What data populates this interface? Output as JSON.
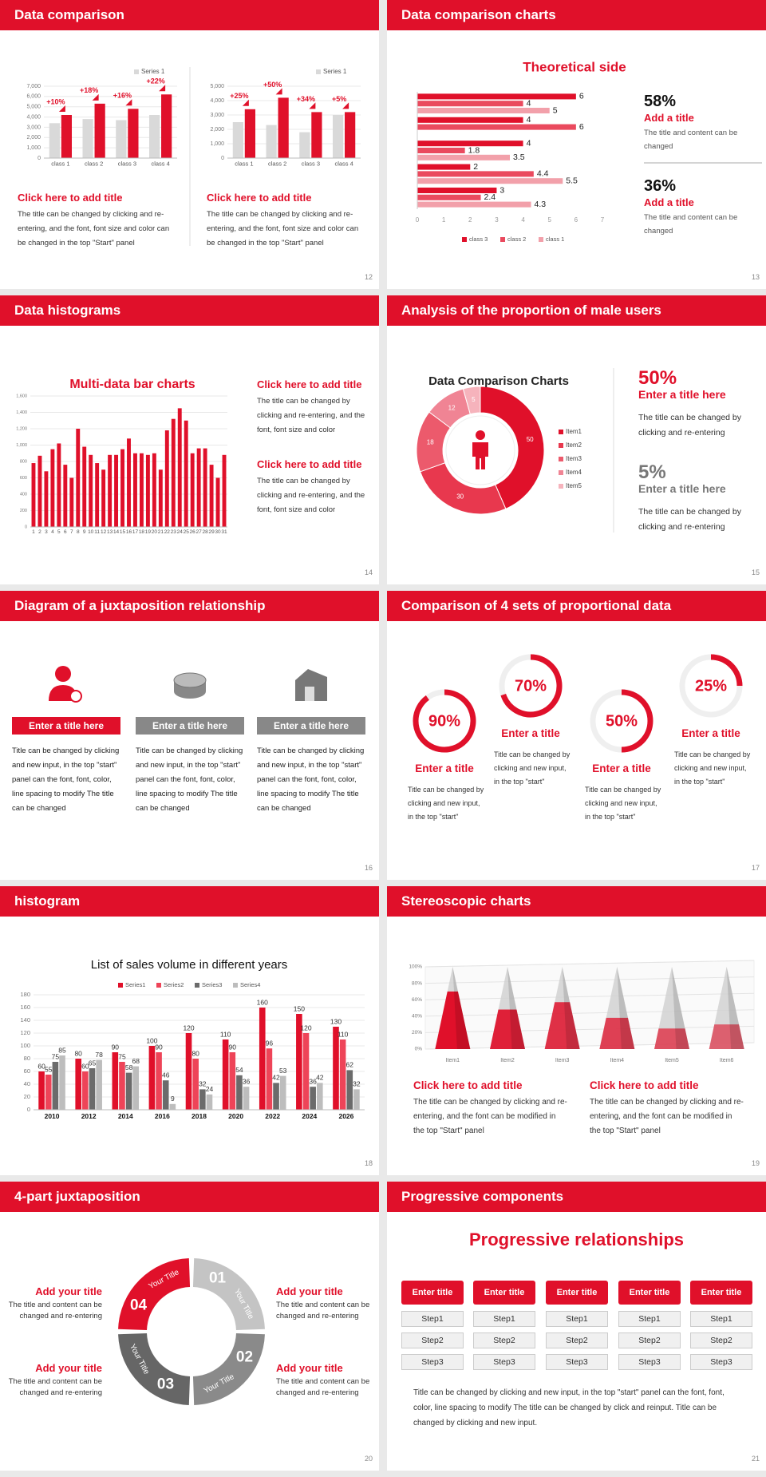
{
  "slides": [
    {
      "title": "Data comparison",
      "number": 12,
      "charts": [
        {
          "type": "bar",
          "categories": [
            "class 1",
            "class 2",
            "class 3",
            "class 4"
          ],
          "series": [
            {
              "name": "Series 1",
              "color": "#d9d9d9",
              "values": [
                3400,
                3800,
                3700,
                4200
              ]
            },
            {
              "color": "#e0102a",
              "values": [
                4200,
                5300,
                4800,
                6200
              ]
            }
          ],
          "annotations": [
            "+10%",
            "+18%",
            "+16%",
            "+22%"
          ],
          "ylim": [
            0,
            7000
          ],
          "yticks": [
            0,
            {
              "value": 1000,
              "label": "1,000"
            },
            {
              "value": 2000,
              "label": "2,000"
            },
            {
              "value": 3000,
              "label": "3,000"
            },
            {
              "value": 4000,
              "label": "4,000"
            },
            {
              "value": 5000,
              "label": "5,000"
            },
            {
              "value": 6000,
              "label": "6,000"
            },
            {
              "value": 7000,
              "label": "7,000"
            }
          ],
          "grid": true
        },
        {
          "type": "bar",
          "categories": [
            "class 1",
            "class 2",
            "class 3",
            "class 4"
          ],
          "series": [
            {
              "name": "Series 1",
              "color": "#d9d9d9",
              "values": [
                2500,
                2300,
                1800,
                3000
              ]
            },
            {
              "color": "#e0102a",
              "values": [
                3400,
                4200,
                3200,
                3200
              ]
            }
          ],
          "annotations": [
            "+25%",
            "+50%",
            "+34%",
            "+5%"
          ],
          "ylim": [
            0,
            5000
          ],
          "yticks": [
            0,
            {
              "value": 1000,
              "label": "1,000"
            },
            {
              "value": 2000,
              "label": "2,000"
            },
            {
              "value": 3000,
              "label": "3,000"
            },
            {
              "value": 4000,
              "label": "4,000"
            },
            {
              "value": 5000,
              "label": "5,000"
            }
          ],
          "grid": true
        }
      ],
      "items": [
        {
          "heading": "Click here to add title",
          "text": "The title can be changed by clicking and re-entering, and the font, font size and color can be changed in the top \"Start\" panel"
        },
        {
          "heading": "Click here to add title",
          "text": "The title can be changed by clicking and re-entering, and the font, font size and color can be changed in the top \"Start\" panel"
        }
      ]
    },
    {
      "title": "Data comparison charts",
      "number": 13,
      "chart": {
        "type": "barh",
        "title": "Theoretical side",
        "categories": [
          null,
          null,
          null,
          null,
          null
        ],
        "series": [
          {
            "name": "class 3",
            "color": "#e0102a",
            "values": [
              6,
              4,
              4,
              2,
              3
            ]
          },
          {
            "name": "class 2",
            "color": "#ea4a5e",
            "values": [
              4,
              6,
              1.8,
              4.4,
              2.4
            ]
          },
          {
            "name": "class 1",
            "color": "#f2a0aa",
            "values": [
              5,
              null,
              3.5,
              5.5,
              4.3
            ]
          }
        ],
        "xlim": [
          0,
          7
        ],
        "xticks": [
          0,
          1,
          2,
          3,
          4,
          5,
          6,
          7
        ]
      },
      "stats": [
        {
          "value": "58%",
          "heading": "Add a title",
          "text": "The title and content can be changed"
        },
        {
          "value": "36%",
          "heading": "Add a title",
          "text": "The title and content can be changed"
        }
      ]
    },
    {
      "title": "Data histograms",
      "number": 14,
      "chart": {
        "type": "bar",
        "title": "Multi-data bar charts",
        "categories": [
          "1",
          "2",
          "3",
          "4",
          "5",
          "6",
          "7",
          "8",
          "9",
          "10",
          "11",
          "12",
          "13",
          "14",
          "15",
          "16",
          "17",
          "18",
          "19",
          "20",
          "21",
          "22",
          "23",
          "24",
          "25",
          "26",
          "27",
          "28",
          "29",
          "30",
          "31"
        ],
        "series": [
          {
            "color": "#e0102a",
            "values": [
              780,
              870,
              680,
              950,
              1020,
              760,
              600,
              1200,
              980,
              880,
              780,
              700,
              880,
              880,
              950,
              1080,
              900,
              900,
              880,
              900,
              700,
              1180,
              1320,
              1450,
              1300,
              900,
              960,
              960,
              760,
              600,
              880
            ]
          }
        ],
        "ylim": [
          0,
          1600
        ],
        "yticks": [
          0,
          200,
          400,
          600,
          800,
          {
            "value": 1000,
            "label": "1,000"
          },
          {
            "value": 1200,
            "label": "1,200"
          },
          {
            "value": 1400,
            "label": "1,400"
          },
          {
            "value": 1600,
            "label": "1,600"
          }
        ],
        "grid": true
      },
      "items": [
        {
          "heading": "Click here to add title",
          "text": "The title can be changed by clicking and re-entering, and the font, font size and color"
        },
        {
          "heading": "Click here to add title",
          "text": "The title can be changed by clicking and re-entering, and the font, font size and color"
        }
      ]
    },
    {
      "title": "Analysis of the proportion of male users",
      "number": 15,
      "chart": {
        "type": "donut",
        "title": "Data Comparison Charts",
        "categories": [
          "Item1",
          "Item2",
          "Item3",
          "Item4",
          "Item5"
        ],
        "values": [
          50,
          30,
          18,
          12,
          5
        ],
        "colors": [
          "#e0102a",
          "#e8384e",
          "#ec5a6c",
          "#f08494",
          "#f6b3bc"
        ]
      },
      "stats": [
        {
          "value": "50%",
          "heading": "Enter a title here",
          "text": "The title can be changed by clicking and re-entering"
        },
        {
          "value": "5%",
          "heading": "Enter a title here",
          "text": "The title can be changed by clicking and re-entering"
        }
      ]
    },
    {
      "title": "Diagram of a juxtaposition relationship",
      "number": 16,
      "items": [
        {
          "heading": "Enter a title here",
          "text": "Title can be changed by clicking and new input, in the top \"start\" panel can the font, font, color, line spacing to modify The title can be changed"
        },
        {
          "heading": "Enter a title here",
          "text": "Title can be changed by clicking and new input, in the top \"start\" panel can the font, font, color, line spacing to modify The title can be changed"
        },
        {
          "heading": "Enter a title here",
          "text": "Title can be changed by clicking and new input, in the top \"start\" panel can the font, font, color, line spacing to modify The title can be changed"
        }
      ]
    },
    {
      "title": "Comparison of 4 sets of proportional data",
      "number": 17,
      "chart": {
        "type": "ring",
        "values": [
          90,
          70,
          50,
          25
        ],
        "value_labels": [
          "90%",
          "70%",
          "50%",
          "25%"
        ],
        "ylim": [
          0,
          100
        ]
      },
      "items": [
        {
          "heading": "Enter a title",
          "text": "Title can be changed by clicking and new input, in the top \"start\""
        },
        {
          "heading": "Enter a title",
          "text": "Title can be changed by clicking and new input, in the top \"start\""
        },
        {
          "heading": "Enter a title",
          "text": "Title can be changed by clicking and new input, in the top \"start\""
        },
        {
          "heading": "Enter a title",
          "text": "Title can be changed by clicking and new input, in the top \"start\""
        }
      ]
    },
    {
      "title": "histogram",
      "number": 18,
      "chart": {
        "type": "bar",
        "title": "List of sales volume in different years",
        "categories": [
          "2010",
          "2012",
          "2014",
          "2016",
          "2018",
          "2020",
          "2022",
          "2024",
          "2026"
        ],
        "series": [
          {
            "name": "Series1",
            "color": "#e0102a",
            "values": [
              60,
              80,
              90,
              100,
              120,
              110,
              160,
              150,
              130
            ]
          },
          {
            "name": "Series2",
            "color": "#ee4458",
            "values": [
              55,
              60,
              75,
              90,
              80,
              90,
              96,
              120,
              110
            ]
          },
          {
            "name": "Series3",
            "color": "#6b6b6b",
            "values": [
              75,
              65,
              58,
              46,
              32,
              54,
              42,
              36,
              62
            ]
          },
          {
            "name": "Series4",
            "color": "#bdbdbd",
            "values": [
              85,
              78,
              68,
              9,
              24,
              36,
              53,
              42,
              32
            ]
          }
        ],
        "ylim": [
          0,
          180
        ],
        "yticks": [
          0,
          20,
          40,
          60,
          80,
          100,
          120,
          140,
          160,
          180
        ],
        "grid": true
      }
    },
    {
      "title": "Stereoscopic charts",
      "number": 19,
      "chart": {
        "type": "cone",
        "categories": [
          "Item1",
          "Item2",
          "Item3",
          "Item4",
          "Item5",
          "Item6"
        ],
        "series": [
          {
            "color": "#e0102a",
            "values": [
              70,
              48,
              57,
              38,
              25,
              30
            ]
          },
          {
            "color": "#cfcfcf",
            "values": [
              100,
              100,
              100,
              100,
              100,
              100
            ]
          }
        ],
        "ylim": [
          0,
          100
        ],
        "yticks": [
          {
            "value": 0,
            "label": "0%"
          },
          {
            "value": 20,
            "label": "20%"
          },
          {
            "value": 40,
            "label": "40%"
          },
          {
            "value": 60,
            "label": "60%"
          },
          {
            "value": 80,
            "label": "80%"
          },
          {
            "value": 100,
            "label": "100%"
          }
        ],
        "grid": true
      },
      "items": [
        {
          "heading": "Click here to add title",
          "text": "The title can be changed by clicking and re-entering, and the font can be modified in the top \"Start\" panel"
        },
        {
          "heading": "Click here to add title",
          "text": "The title can be changed by clicking and re-entering, and the font can be modified in the top \"Start\" panel"
        }
      ]
    },
    {
      "title": "4-part juxtaposition",
      "number": 20,
      "segments": [
        {
          "number": "01",
          "label": "Your Title"
        },
        {
          "number": "02",
          "label": "Your Title"
        },
        {
          "number": "03",
          "label": "Your Title"
        },
        {
          "number": "04",
          "label": "Your Title"
        }
      ],
      "items": [
        {
          "heading": "Add your title",
          "text": "The title and content can be changed and re-entering"
        },
        {
          "heading": "Add your title",
          "text": "The title and content can be changed and re-entering"
        },
        {
          "heading": "Add your title",
          "text": "The title and content can be changed and re-entering"
        },
        {
          "heading": "Add your title",
          "text": "The title and content can be changed and re-entering"
        }
      ]
    },
    {
      "title": "Progressive components",
      "number": 21,
      "heading": "Progressive relationships",
      "columns": [
        {
          "title": "Enter title",
          "steps": [
            "Step1",
            "Step2",
            "Step3"
          ]
        },
        {
          "title": "Enter title",
          "steps": [
            "Step1",
            "Step2",
            "Step3"
          ]
        },
        {
          "title": "Enter title",
          "steps": [
            "Step1",
            "Step2",
            "Step3"
          ]
        },
        {
          "title": "Enter title",
          "steps": [
            "Step1",
            "Step2",
            "Step3"
          ]
        },
        {
          "title": "Enter title",
          "steps": [
            "Step1",
            "Step2",
            "Step3"
          ]
        }
      ],
      "text": "Title can be changed by clicking and new input, in the top \"start\" panel can the font, font, color, line spacing to modify The title can be changed by click and reinput. Title can be changed by clicking and new input."
    }
  ]
}
